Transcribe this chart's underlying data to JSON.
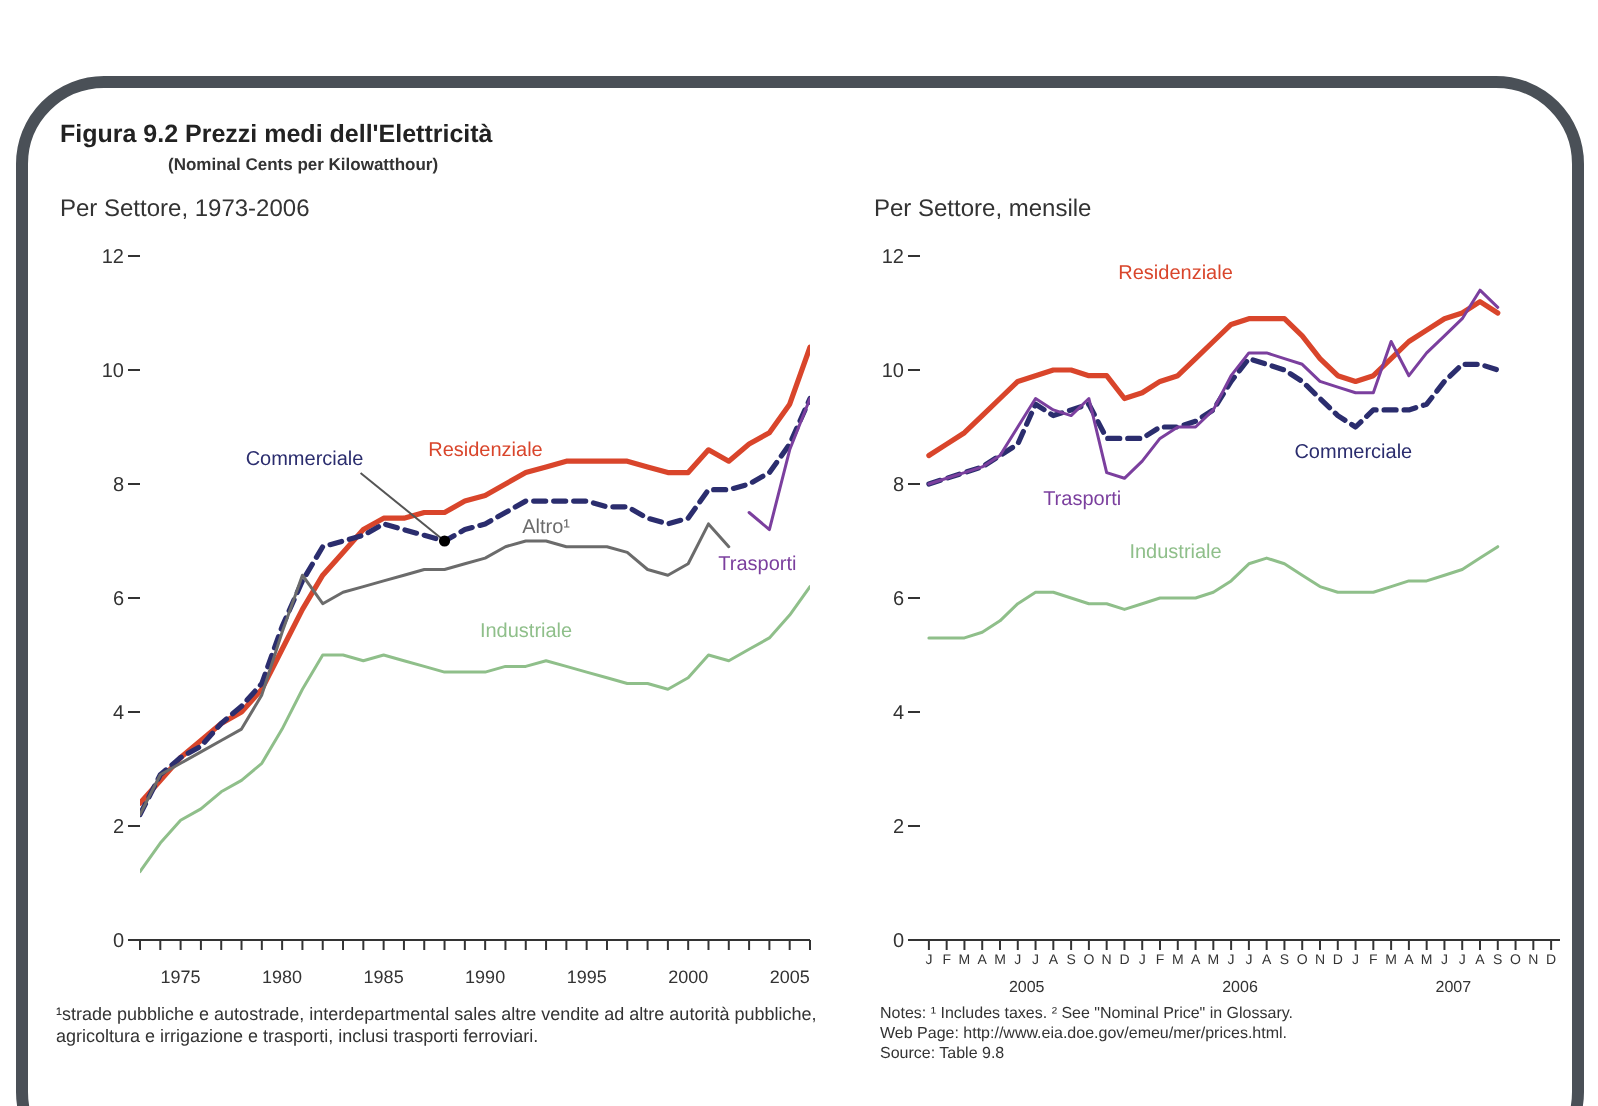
{
  "chart_data": [
    {
      "type": "line",
      "title": "Figura 9.2  Prezzi medi dell'Elettricità",
      "subtitle": "(Nominal Cents per Kilowatthour)",
      "annotations": [
        "Per Settore, 1973-2006",
        "¹strade pubbliche e autostrade, interdepartmental sales altre vendite ad altre autorità pubbliche, agricoltura e irrigazione e trasporti, inclusi trasporti ferroviari."
      ],
      "x": [
        1973,
        1974,
        1975,
        1976,
        1977,
        1978,
        1979,
        1980,
        1981,
        1982,
        1983,
        1984,
        1985,
        1986,
        1987,
        1988,
        1989,
        1990,
        1991,
        1992,
        1993,
        1994,
        1995,
        1996,
        1997,
        1998,
        1999,
        2000,
        2001,
        2002,
        2003,
        2004,
        2005,
        2006
      ],
      "series": [
        {
          "name": "Residenziale",
          "color": "#d9452b",
          "values": [
            2.4,
            2.8,
            3.2,
            3.5,
            3.8,
            4.0,
            4.4,
            5.1,
            5.8,
            6.4,
            6.8,
            7.2,
            7.4,
            7.4,
            7.5,
            7.5,
            7.7,
            7.8,
            8.0,
            8.2,
            8.3,
            8.4,
            8.4,
            8.4,
            8.4,
            8.3,
            8.2,
            8.2,
            8.6,
            8.4,
            8.7,
            8.9,
            9.4,
            10.4
          ]
        },
        {
          "name": "Commerciale",
          "color": "#2b2d6e",
          "line_style": "dashed",
          "values": [
            2.2,
            2.9,
            3.2,
            3.4,
            3.8,
            4.1,
            4.5,
            5.5,
            6.3,
            6.9,
            7.0,
            7.1,
            7.3,
            7.2,
            7.1,
            7.0,
            7.2,
            7.3,
            7.5,
            7.7,
            7.7,
            7.7,
            7.7,
            7.6,
            7.6,
            7.4,
            7.3,
            7.4,
            7.9,
            7.9,
            8.0,
            8.2,
            8.7,
            9.5
          ]
        },
        {
          "name": "Altro¹",
          "color": "#6b6b6b",
          "values": [
            2.2,
            2.9,
            3.1,
            3.3,
            3.5,
            3.7,
            4.3,
            5.4,
            6.4,
            5.9,
            6.1,
            6.2,
            6.3,
            6.4,
            6.5,
            6.5,
            6.6,
            6.7,
            6.9,
            7.0,
            7.0,
            6.9,
            6.9,
            6.9,
            6.8,
            6.5,
            6.4,
            6.6,
            7.3,
            6.9,
            null,
            null,
            null,
            null
          ]
        },
        {
          "name": "Trasporti",
          "color": "#7b3f9e",
          "values": [
            null,
            null,
            null,
            null,
            null,
            null,
            null,
            null,
            null,
            null,
            null,
            null,
            null,
            null,
            null,
            null,
            null,
            null,
            null,
            null,
            null,
            null,
            null,
            null,
            null,
            null,
            null,
            null,
            null,
            null,
            7.5,
            7.2,
            8.6,
            9.5
          ]
        },
        {
          "name": "Industriale",
          "color": "#8fbf8a",
          "values": [
            1.2,
            1.7,
            2.1,
            2.3,
            2.6,
            2.8,
            3.1,
            3.7,
            4.4,
            5.0,
            5.0,
            4.9,
            5.0,
            4.9,
            4.8,
            4.7,
            4.7,
            4.7,
            4.8,
            4.8,
            4.9,
            4.8,
            4.7,
            4.6,
            4.5,
            4.5,
            4.4,
            4.6,
            5.0,
            4.9,
            5.1,
            5.3,
            5.7,
            6.2
          ]
        }
      ],
      "xlim": [
        1973,
        2006
      ],
      "xticks": [
        {
          "value": 1973,
          "label": null
        },
        {
          "value": 1974,
          "label": null
        },
        1975,
        {
          "value": 1976,
          "label": null
        },
        {
          "value": 1977,
          "label": null
        },
        {
          "value": 1978,
          "label": null
        },
        {
          "value": 1979,
          "label": null
        },
        1980,
        {
          "value": 1981,
          "label": null
        },
        {
          "value": 1982,
          "label": null
        },
        {
          "value": 1983,
          "label": null
        },
        {
          "value": 1984,
          "label": null
        },
        1985,
        {
          "value": 1986,
          "label": null
        },
        {
          "value": 1987,
          "label": null
        },
        {
          "value": 1988,
          "label": null
        },
        {
          "value": 1989,
          "label": null
        },
        1990,
        {
          "value": 1991,
          "label": null
        },
        {
          "value": 1992,
          "label": null
        },
        {
          "value": 1993,
          "label": null
        },
        {
          "value": 1994,
          "label": null
        },
        1995,
        {
          "value": 1996,
          "label": null
        },
        {
          "value": 1997,
          "label": null
        },
        {
          "value": 1998,
          "label": null
        },
        {
          "value": 1999,
          "label": null
        },
        2000,
        {
          "value": 2001,
          "label": null
        },
        {
          "value": 2002,
          "label": null
        },
        {
          "value": 2003,
          "label": null
        },
        {
          "value": 2004,
          "label": null
        },
        2005,
        {
          "value": 2006,
          "label": null
        }
      ],
      "ylim": [
        0,
        12
      ],
      "yticks": [
        0,
        2,
        4,
        6,
        8,
        10,
        12
      ],
      "legend": false,
      "grid": false,
      "marker": "none",
      "line_style": "solid"
    },
    {
      "type": "line",
      "title": "Per Settore, mensile",
      "annotations": [
        "2005",
        "2006",
        "2007",
        "Notes: ¹ Includes taxes.  ² See \"Nominal Price\" in Glossary.",
        "Web Page: http://www.eia.doe.gov/emeu/mer/prices.html.",
        "Source: Table 9.8"
      ],
      "categories": [
        "J",
        "F",
        "M",
        "A",
        "M",
        "J",
        "J",
        "A",
        "S",
        "O",
        "N",
        "D",
        "J",
        "F",
        "M",
        "A",
        "M",
        "J",
        "J",
        "A",
        "S",
        "O",
        "N",
        "D",
        "J",
        "F",
        "M",
        "A",
        "M",
        "J",
        "J",
        "A",
        "S",
        "O",
        "N",
        "D"
      ],
      "series": [
        {
          "name": "Residenziale",
          "color": "#d9452b",
          "values": [
            8.5,
            8.7,
            8.9,
            9.2,
            9.5,
            9.8,
            9.9,
            10.0,
            10.0,
            9.9,
            9.9,
            9.5,
            9.6,
            9.8,
            9.9,
            10.2,
            10.5,
            10.8,
            10.9,
            10.9,
            10.9,
            10.6,
            10.2,
            9.9,
            9.8,
            9.9,
            10.2,
            10.5,
            10.7,
            10.9,
            11.0,
            11.2,
            11.0,
            null,
            null,
            null
          ]
        },
        {
          "name": "Commerciale",
          "color": "#2b2d6e",
          "line_style": "dashed",
          "values": [
            8.0,
            8.1,
            8.2,
            8.3,
            8.5,
            8.7,
            9.4,
            9.2,
            9.3,
            9.4,
            8.8,
            8.8,
            8.8,
            9.0,
            9.0,
            9.1,
            9.3,
            9.8,
            10.2,
            10.1,
            10.0,
            9.8,
            9.5,
            9.2,
            9.0,
            9.3,
            9.3,
            9.3,
            9.4,
            9.8,
            10.1,
            10.1,
            10.0,
            null,
            null,
            null
          ]
        },
        {
          "name": "Trasporti",
          "color": "#7b3f9e",
          "values": [
            8.0,
            8.1,
            8.2,
            8.3,
            8.5,
            9.0,
            9.5,
            9.3,
            9.2,
            9.5,
            8.2,
            8.1,
            8.4,
            8.8,
            9.0,
            9.0,
            9.3,
            9.9,
            10.3,
            10.3,
            10.2,
            10.1,
            9.8,
            9.7,
            9.6,
            9.6,
            10.5,
            9.9,
            10.3,
            10.6,
            10.9,
            11.4,
            11.1,
            null,
            null,
            null
          ]
        },
        {
          "name": "Industriale",
          "color": "#8fbf8a",
          "values": [
            5.3,
            5.3,
            5.3,
            5.4,
            5.6,
            5.9,
            6.1,
            6.1,
            6.0,
            5.9,
            5.9,
            5.8,
            5.9,
            6.0,
            6.0,
            6.0,
            6.1,
            6.3,
            6.6,
            6.7,
            6.6,
            6.4,
            6.2,
            6.1,
            6.1,
            6.1,
            6.2,
            6.3,
            6.3,
            6.4,
            6.5,
            6.7,
            6.9,
            null,
            null,
            null
          ]
        }
      ],
      "ylim": [
        0,
        12
      ],
      "yticks": [
        0,
        2,
        4,
        6,
        8,
        10,
        12
      ],
      "legend": false,
      "grid": false,
      "marker": "none",
      "line_style": "solid"
    }
  ]
}
